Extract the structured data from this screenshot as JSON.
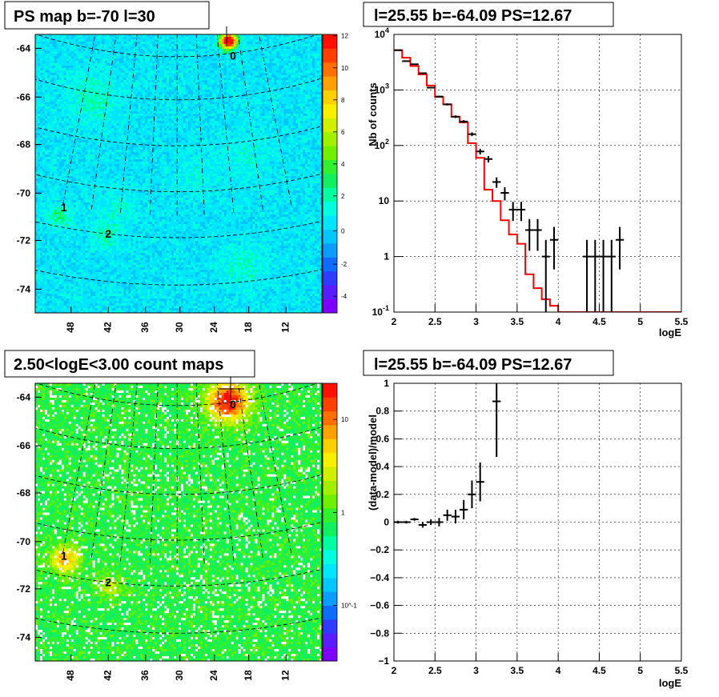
{
  "chart_data": [
    {
      "type": "heatmap",
      "title": "PS map b=-70 l=30",
      "y_ticks": [
        "-64",
        "-66",
        "-68",
        "-70",
        "-72",
        "-74"
      ],
      "x_ticks": [
        "48",
        "42",
        "36",
        "30",
        "24",
        "18",
        "12"
      ],
      "colorbar_ticks": [
        "12",
        "10",
        "8",
        "6",
        "4",
        "2",
        "0",
        "-2",
        "-4"
      ],
      "colorbar_range": [
        -5,
        12
      ],
      "sources": [
        {
          "label": "0",
          "l": 21,
          "b": -64.3
        },
        {
          "label": "1",
          "l": 46,
          "b": -70.9
        },
        {
          "label": "2",
          "l": 41,
          "b": -71.8
        }
      ]
    },
    {
      "type": "line",
      "title": "l=25.55 b=-64.09 PS=12.67",
      "xlabel": "logE",
      "ylabel": "Nb of counts",
      "log_y": true,
      "xlim": [
        2,
        5.5
      ],
      "ylim": [
        0.1,
        10000
      ],
      "x_ticks": [
        "2",
        "2.5",
        "3",
        "3.5",
        "4",
        "4.5",
        "5",
        "5.5"
      ],
      "y_ticks": [
        "10^4",
        "10^3",
        "10^2",
        "10",
        "1",
        "10^-1"
      ],
      "grid": true,
      "data_points": [
        {
          "x": 2.05,
          "y": 5200
        },
        {
          "x": 2.15,
          "y": 3300
        },
        {
          "x": 2.25,
          "y": 2900
        },
        {
          "x": 2.35,
          "y": 2000
        },
        {
          "x": 2.45,
          "y": 1100
        },
        {
          "x": 2.55,
          "y": 760
        },
        {
          "x": 2.65,
          "y": 550
        },
        {
          "x": 2.75,
          "y": 330
        },
        {
          "x": 2.85,
          "y": 270
        },
        {
          "x": 2.95,
          "y": 160
        },
        {
          "x": 3.05,
          "y": 78
        },
        {
          "x": 3.15,
          "y": 57
        },
        {
          "x": 3.25,
          "y": 22
        },
        {
          "x": 3.35,
          "y": 14
        },
        {
          "x": 3.45,
          "y": 7
        },
        {
          "x": 3.55,
          "y": 7
        },
        {
          "x": 3.65,
          "y": 3
        },
        {
          "x": 3.75,
          "y": 3
        },
        {
          "x": 3.85,
          "y": 1
        },
        {
          "x": 3.95,
          "y": 2
        },
        {
          "x": 4.35,
          "y": 1
        },
        {
          "x": 4.45,
          "y": 1
        },
        {
          "x": 4.55,
          "y": 1
        },
        {
          "x": 4.65,
          "y": 1
        },
        {
          "x": 4.75,
          "y": 2
        }
      ],
      "model_step": [
        {
          "x0": 2.0,
          "x1": 2.1,
          "y": 5200
        },
        {
          "x0": 2.1,
          "x1": 2.2,
          "y": 3800
        },
        {
          "x0": 2.2,
          "x1": 2.3,
          "y": 2700
        },
        {
          "x0": 2.3,
          "x1": 2.4,
          "y": 1900
        },
        {
          "x0": 2.4,
          "x1": 2.5,
          "y": 1200
        },
        {
          "x0": 2.5,
          "x1": 2.6,
          "y": 750
        },
        {
          "x0": 2.6,
          "x1": 2.7,
          "y": 550
        },
        {
          "x0": 2.7,
          "x1": 2.8,
          "y": 330
        },
        {
          "x0": 2.8,
          "x1": 2.9,
          "y": 260
        },
        {
          "x0": 2.9,
          "x1": 3.0,
          "y": 110
        },
        {
          "x0": 3.0,
          "x1": 3.1,
          "y": 60
        },
        {
          "x0": 3.1,
          "x1": 3.2,
          "y": 16
        },
        {
          "x0": 3.2,
          "x1": 3.3,
          "y": 10
        },
        {
          "x0": 3.3,
          "x1": 3.4,
          "y": 4.5
        },
        {
          "x0": 3.4,
          "x1": 3.5,
          "y": 2.5
        },
        {
          "x0": 3.5,
          "x1": 3.6,
          "y": 1.7
        },
        {
          "x0": 3.6,
          "x1": 3.7,
          "y": 0.48
        },
        {
          "x0": 3.7,
          "x1": 3.8,
          "y": 0.27
        },
        {
          "x0": 3.8,
          "x1": 3.9,
          "y": 0.17
        },
        {
          "x0": 3.9,
          "x1": 4.0,
          "y": 0.13
        },
        {
          "x0": 4.0,
          "x1": 5.5,
          "y": 0.1
        }
      ]
    },
    {
      "type": "heatmap",
      "title": "2.50<logE<3.00 count maps",
      "y_ticks": [
        "-64",
        "-66",
        "-68",
        "-70",
        "-72",
        "-74"
      ],
      "x_ticks": [
        "48",
        "42",
        "36",
        "30",
        "24",
        "18",
        "12"
      ],
      "colorbar_ticks": [
        "10",
        "1",
        "10^-1"
      ],
      "log_color": true,
      "sources": [
        {
          "label": "0",
          "l": 21,
          "b": -64.3
        },
        {
          "label": "1",
          "l": 46,
          "b": -70.9
        },
        {
          "label": "2",
          "l": 41,
          "b": -71.8
        }
      ]
    },
    {
      "type": "scatter",
      "title": "l=25.55 b=-64.09 PS=12.67",
      "xlabel": "logE",
      "ylabel": "(data-model)/model",
      "xlim": [
        2,
        5.5
      ],
      "ylim": [
        -1,
        1
      ],
      "x_ticks": [
        "2",
        "2.5",
        "3",
        "3.5",
        "4",
        "4.5",
        "5",
        "5.5"
      ],
      "y_ticks": [
        "1",
        "0.8",
        "0.6",
        "0.4",
        "0.2",
        "0",
        "−0.2",
        "−0.4",
        "−0.6",
        "−0.8",
        "−1"
      ],
      "grid": true,
      "data_points": [
        {
          "x": 2.05,
          "y": 0.0,
          "err": 0.01
        },
        {
          "x": 2.15,
          "y": 0.0,
          "err": 0.01
        },
        {
          "x": 2.25,
          "y": 0.02,
          "err": 0.01
        },
        {
          "x": 2.35,
          "y": -0.02,
          "err": 0.02
        },
        {
          "x": 2.45,
          "y": 0.0,
          "err": 0.02
        },
        {
          "x": 2.55,
          "y": 0.0,
          "err": 0.03
        },
        {
          "x": 2.65,
          "y": 0.05,
          "err": 0.04
        },
        {
          "x": 2.75,
          "y": 0.04,
          "err": 0.05
        },
        {
          "x": 2.85,
          "y": 0.09,
          "err": 0.07
        },
        {
          "x": 2.95,
          "y": 0.2,
          "err": 0.1
        },
        {
          "x": 3.05,
          "y": 0.29,
          "err": 0.14
        },
        {
          "x": 3.25,
          "y": 0.87,
          "err": 0.4
        }
      ]
    }
  ]
}
